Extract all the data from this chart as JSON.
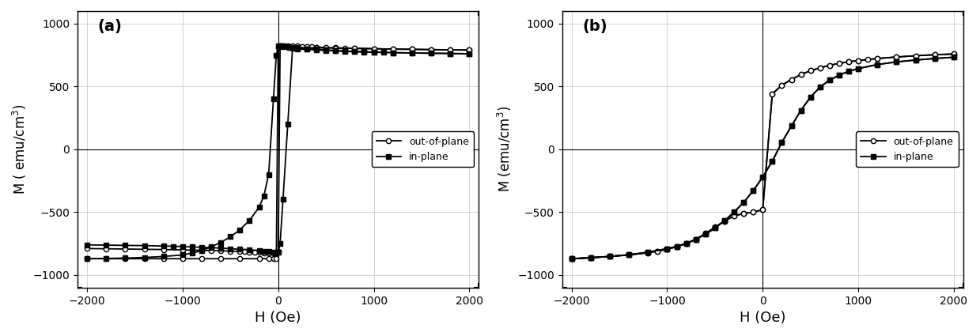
{
  "panel_a_label": "(a)",
  "panel_b_label": "(b)",
  "xlim": [
    -2100,
    2100
  ],
  "ylim": [
    -1100,
    1100
  ],
  "xticks": [
    -2000,
    -1000,
    0,
    1000,
    2000
  ],
  "yticks": [
    -1000,
    -500,
    0,
    500,
    1000
  ],
  "xlabel": "H (Oe)",
  "ylabel_a": "M ( emu/cm$^3$)",
  "ylabel_b": "M (emu/cm$^3$)",
  "legend_outofplane": "out-of-plane",
  "legend_inplane": "in-plane",
  "a_ip_up_H": [
    -2000,
    -1800,
    -1600,
    -1400,
    -1200,
    -1000,
    -900,
    -800,
    -700,
    -600,
    -500,
    -400,
    -300,
    -200,
    -150,
    -100,
    -50,
    -20,
    0,
    20,
    50,
    100,
    150,
    200,
    300,
    400,
    500,
    600,
    700,
    800,
    900,
    1000,
    1100,
    1200,
    1400,
    1600,
    1800,
    2000
  ],
  "a_ip_up_M": [
    -870,
    -868,
    -865,
    -860,
    -852,
    -840,
    -825,
    -805,
    -775,
    -740,
    -695,
    -640,
    -565,
    -460,
    -370,
    -200,
    400,
    750,
    820,
    825,
    820,
    815,
    810,
    805,
    800,
    795,
    790,
    786,
    782,
    779,
    776,
    773,
    771,
    769,
    766,
    764,
    762,
    760
  ],
  "a_ip_dn_H": [
    2000,
    1800,
    1600,
    1400,
    1200,
    1000,
    900,
    800,
    700,
    600,
    500,
    400,
    300,
    200,
    150,
    100,
    50,
    20,
    0,
    -20,
    -50,
    -100,
    -150,
    -200,
    -300,
    -400,
    -500,
    -600,
    -700,
    -800,
    -900,
    -1000,
    -1100,
    -1200,
    -1400,
    -1600,
    -1800,
    -2000
  ],
  "a_ip_dn_M": [
    760,
    762,
    764,
    766,
    769,
    771,
    773,
    776,
    779,
    782,
    786,
    790,
    795,
    800,
    805,
    200,
    -400,
    -750,
    -820,
    -825,
    -820,
    -815,
    -810,
    -805,
    -800,
    -795,
    -790,
    -786,
    -782,
    -779,
    -776,
    -773,
    -771,
    -769,
    -766,
    -764,
    -762,
    -760
  ],
  "a_op_up_H": [
    -2000,
    -1800,
    -1600,
    -1400,
    -1200,
    -1000,
    -800,
    -600,
    -400,
    -200,
    -100,
    -50,
    -20,
    0,
    20,
    50,
    100,
    150,
    200,
    250,
    300,
    350,
    400,
    500,
    600,
    700,
    800,
    1000,
    1200,
    1400,
    1600,
    1800,
    2000
  ],
  "a_op_up_M": [
    -870,
    -870,
    -870,
    -870,
    -870,
    -870,
    -870,
    -870,
    -870,
    -870,
    -870,
    -870,
    -870,
    810,
    820,
    825,
    825,
    823,
    820,
    818,
    816,
    814,
    812,
    809,
    807,
    805,
    803,
    800,
    797,
    795,
    793,
    791,
    789
  ],
  "a_op_dn_H": [
    2000,
    1800,
    1600,
    1400,
    1200,
    1000,
    800,
    600,
    400,
    200,
    100,
    50,
    20,
    0,
    -20,
    -50,
    -100,
    -150,
    -200,
    -250,
    -300,
    -350,
    -400,
    -500,
    -600,
    -700,
    -800,
    -1000,
    -1200,
    -1400,
    -1600,
    -1800,
    -2000
  ],
  "a_op_dn_M": [
    789,
    791,
    793,
    795,
    797,
    800,
    803,
    805,
    807,
    809,
    812,
    814,
    816,
    -810,
    -820,
    -825,
    -825,
    -823,
    -820,
    -818,
    -816,
    -814,
    -812,
    -809,
    -807,
    -805,
    -803,
    -800,
    -797,
    -795,
    -793,
    -791,
    -789
  ],
  "b_ip_up_H": [
    -2000,
    -1800,
    -1600,
    -1400,
    -1200,
    -1000,
    -900,
    -800,
    -700,
    -600,
    -500,
    -400,
    -300,
    -200,
    -100,
    0,
    100,
    200,
    300,
    400,
    500,
    600,
    700,
    800,
    900,
    1000,
    1200,
    1400,
    1600,
    1800,
    2000
  ],
  "b_ip_up_M": [
    -870,
    -862,
    -852,
    -838,
    -818,
    -790,
    -772,
    -748,
    -716,
    -676,
    -626,
    -568,
    -500,
    -422,
    -330,
    -220,
    -95,
    55,
    185,
    310,
    415,
    495,
    550,
    590,
    620,
    642,
    674,
    695,
    710,
    722,
    732
  ],
  "b_ip_dn_H": [
    2000,
    1800,
    1600,
    1400,
    1200,
    1000,
    900,
    800,
    700,
    600,
    500,
    400,
    300,
    200,
    100,
    0,
    -100,
    -200,
    -300,
    -400,
    -500,
    -600,
    -700,
    -800,
    -900,
    -1000,
    -1200,
    -1400,
    -1600,
    -1800,
    -2000
  ],
  "b_ip_dn_M": [
    732,
    722,
    710,
    695,
    674,
    642,
    620,
    590,
    550,
    495,
    415,
    310,
    185,
    55,
    -95,
    -220,
    -330,
    -422,
    -500,
    -568,
    -626,
    -676,
    -716,
    -748,
    -772,
    -790,
    -818,
    -838,
    -852,
    -862,
    -870
  ],
  "b_op_up_H": [
    -2000,
    -1800,
    -1600,
    -1400,
    -1200,
    -1100,
    -1000,
    -900,
    -800,
    -700,
    -600,
    -500,
    -400,
    -300,
    -200,
    -100,
    0,
    100,
    200,
    300,
    400,
    500,
    600,
    700,
    800,
    900,
    1000,
    1200,
    1400,
    1600,
    1800,
    2000
  ],
  "b_op_up_M": [
    -870,
    -862,
    -852,
    -840,
    -822,
    -810,
    -795,
    -775,
    -750,
    -715,
    -670,
    -620,
    -570,
    -530,
    -510,
    -500,
    -480,
    440,
    510,
    555,
    595,
    625,
    648,
    668,
    684,
    696,
    706,
    722,
    734,
    744,
    752,
    758
  ],
  "b_op_dn_H": [
    2000,
    1800,
    1600,
    1400,
    1200,
    1100,
    1000,
    900,
    800,
    700,
    600,
    500,
    400,
    300,
    200,
    100,
    0,
    -100,
    -200,
    -300,
    -400,
    -500,
    -600,
    -700,
    -800,
    -900,
    -1000,
    -1100,
    -1200,
    -1400,
    -1600,
    -1800,
    -2000
  ],
  "b_op_dn_M": [
    758,
    752,
    744,
    734,
    722,
    714,
    706,
    696,
    684,
    668,
    648,
    625,
    595,
    555,
    510,
    440,
    -480,
    -500,
    -510,
    -530,
    -570,
    -620,
    -670,
    -715,
    -750,
    -775,
    -795,
    -810,
    -822,
    -840,
    -852,
    -862,
    -870
  ]
}
